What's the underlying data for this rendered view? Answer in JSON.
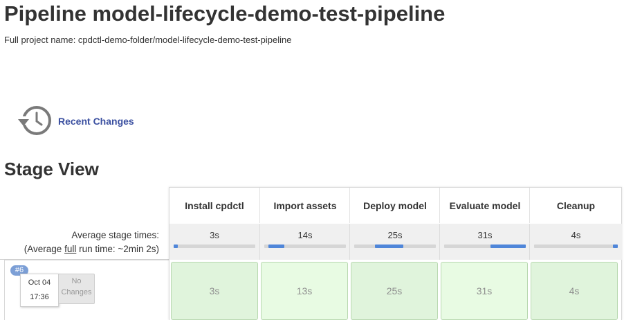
{
  "page": {
    "title": "Pipeline model-lifecycle-demo-test-pipeline",
    "full_name": "Full project name: cpdctl-demo-folder/model-lifecycle-demo-test-pipeline"
  },
  "recent_changes": {
    "label": "Recent Changes",
    "icon": "history-clock-icon"
  },
  "stage_view": {
    "title": "Stage View",
    "avg_label_line1": "Average stage times:",
    "avg_label_prefix": "(Average ",
    "avg_label_link": "full",
    "avg_label_suffix": " run time: ~2min 2s)",
    "stages": [
      {
        "name": "Install cpdctl",
        "avg": "3s",
        "bar_start": 0.0,
        "bar_fraction": 0.05
      },
      {
        "name": "Import assets",
        "avg": "14s",
        "bar_start": 0.05,
        "bar_fraction": 0.2
      },
      {
        "name": "Deploy model",
        "avg": "25s",
        "bar_start": 0.25,
        "bar_fraction": 0.35
      },
      {
        "name": "Evaluate model",
        "avg": "31s",
        "bar_start": 0.57,
        "bar_fraction": 0.43
      },
      {
        "name": "Cleanup",
        "avg": "4s",
        "bar_start": 0.94,
        "bar_fraction": 0.06
      }
    ],
    "runs": [
      {
        "number": "#6",
        "date": "Oct 04",
        "time": "17:36",
        "changes_line1": "No",
        "changes_line2": "Changes",
        "durations": [
          "3s",
          "13s",
          "25s",
          "31s",
          "4s"
        ]
      }
    ],
    "colors": {
      "success": "#e0f4dc",
      "success_alt": "#e8fbe3",
      "bar": "#4f86d9",
      "link": "#3a4fa0"
    }
  }
}
